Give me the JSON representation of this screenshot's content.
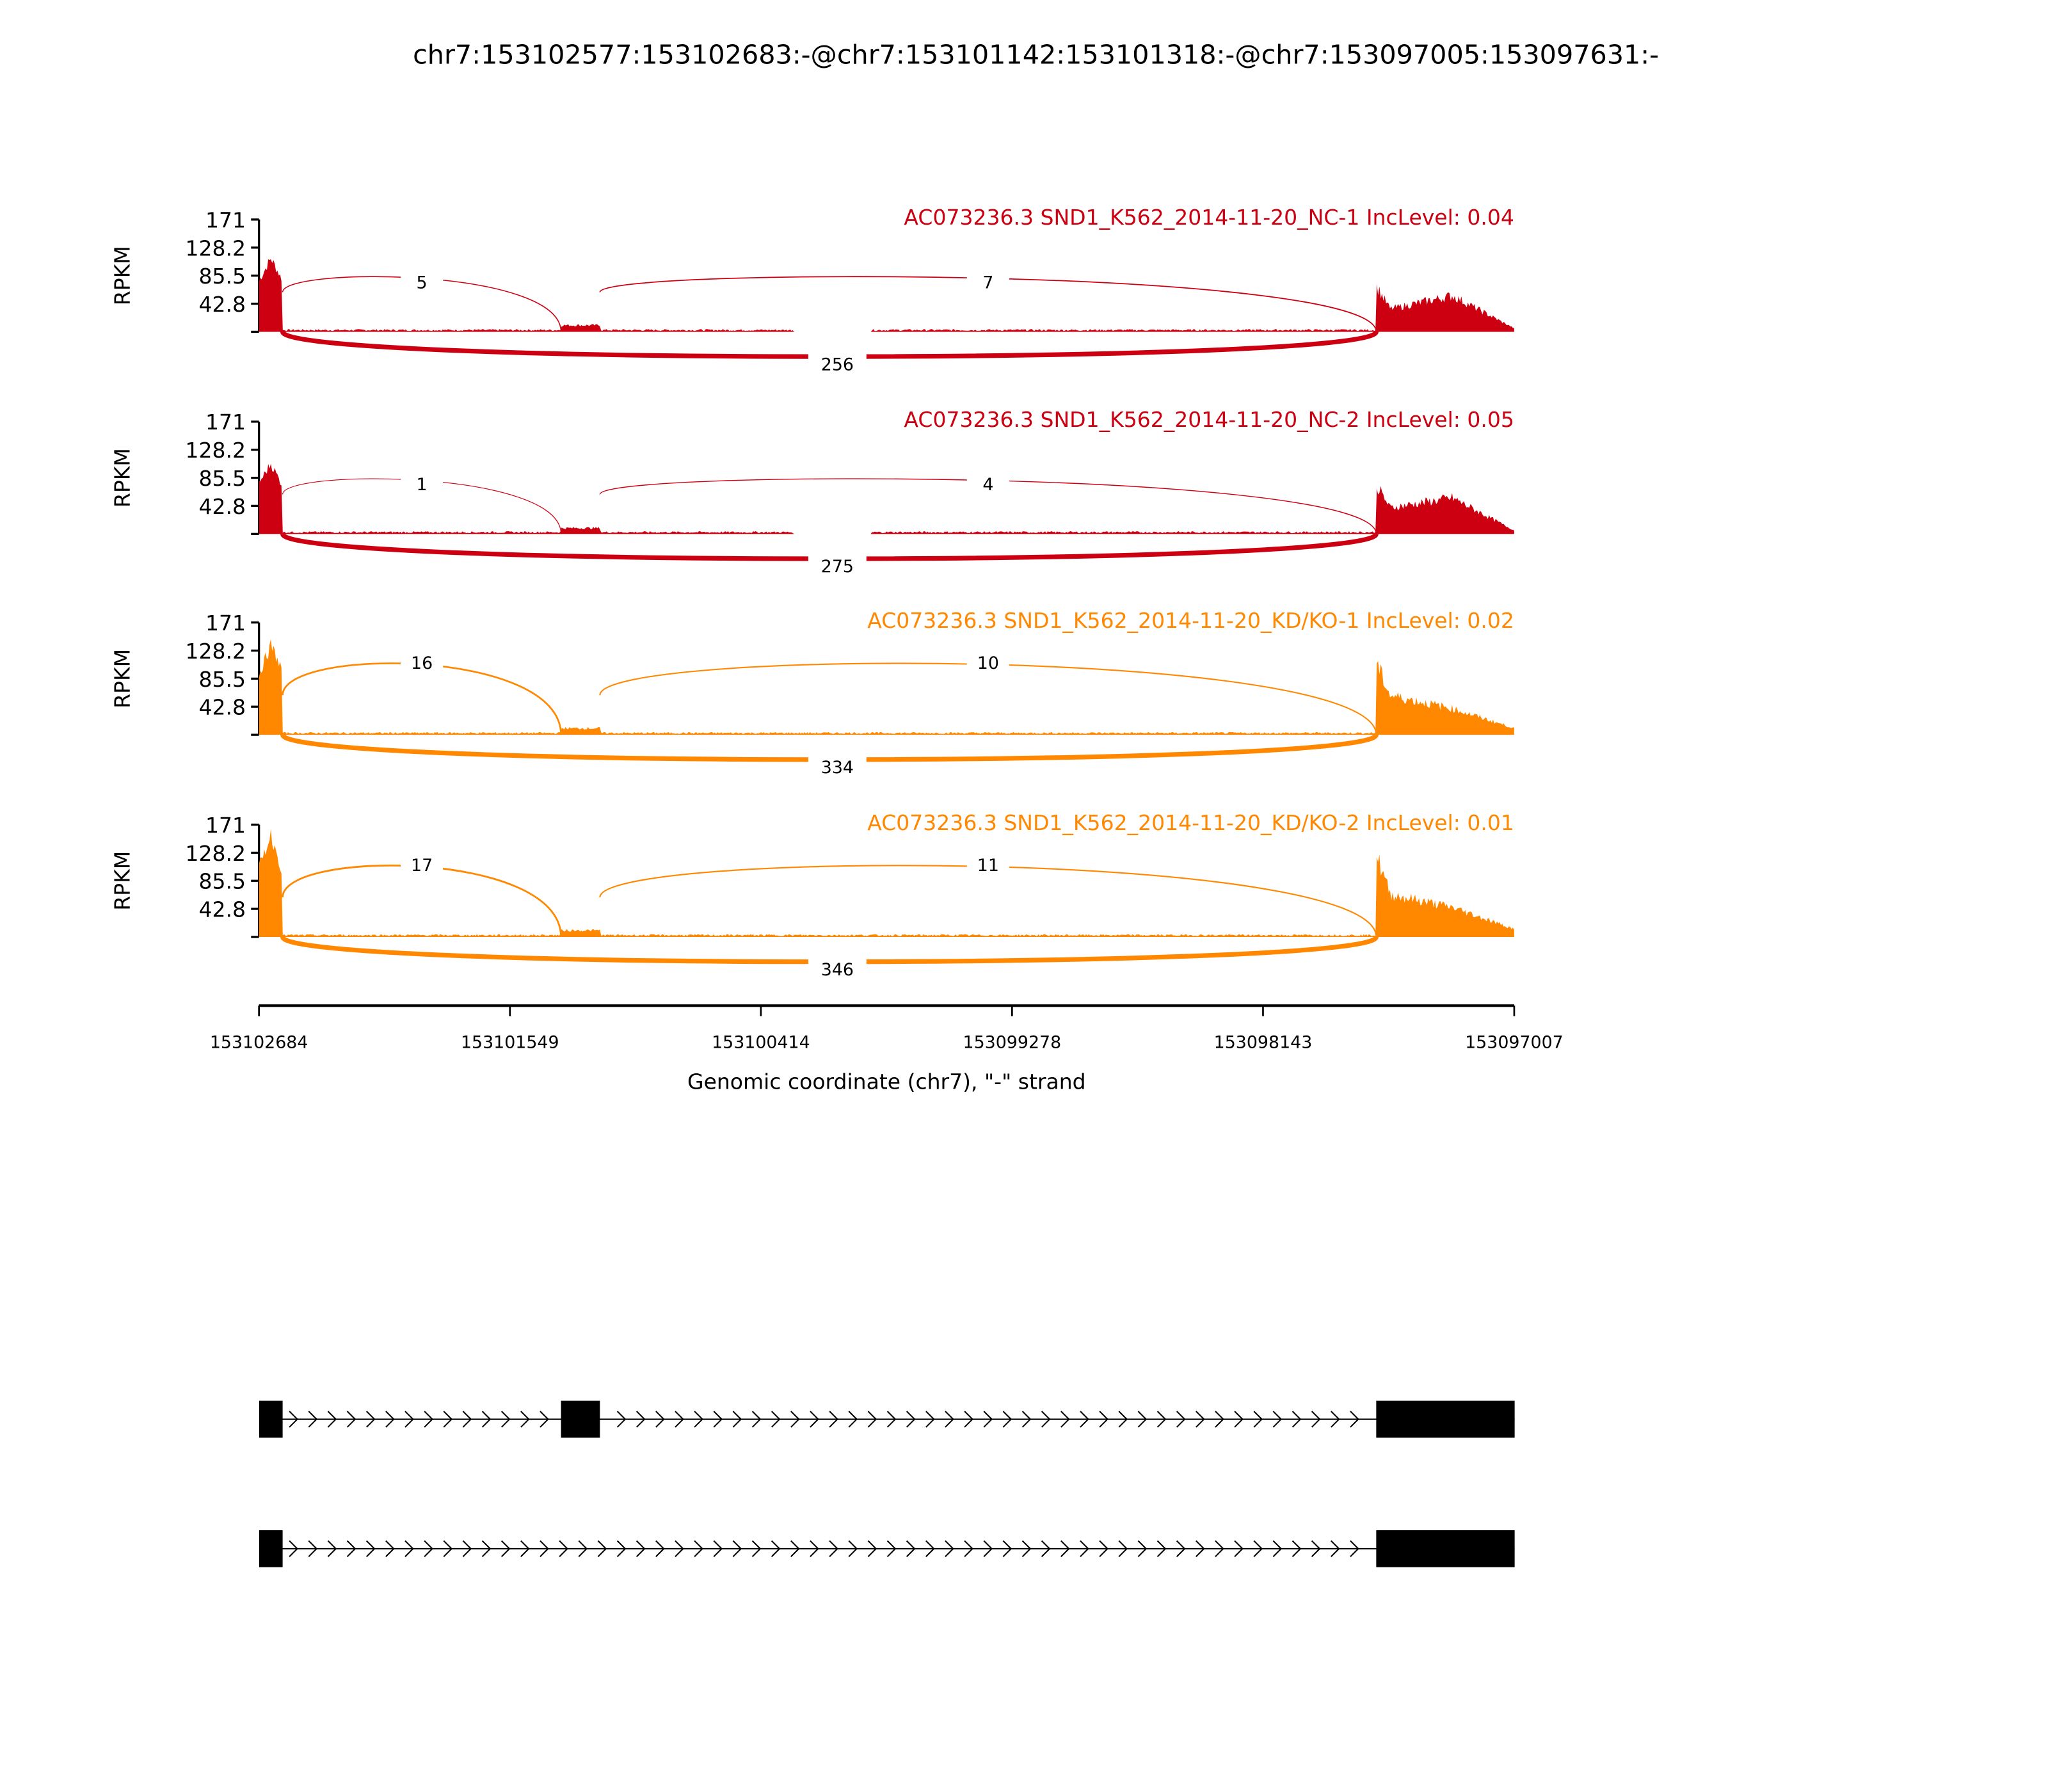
{
  "title": "chr7:153102577:153102683:-@chr7:153101142:153101318:-@chr7:153097005:153097631:-",
  "chart_data": {
    "type": "area",
    "title": "chr7:153102577:153102683:-@chr7:153101142:153101318:-@chr7:153097005:153097631:-",
    "ylabel": "RPKM",
    "xlabel": "Genomic coordinate (chr7), \"-\" strand",
    "ylim": [
      0,
      171
    ],
    "yticks": [
      "42.8",
      "85.5",
      "128.2",
      "171"
    ],
    "xlim": [
      153102684,
      153097007
    ],
    "xticks": [
      "153102684",
      "153101549",
      "153100414",
      "153099278",
      "153098143",
      "153097007"
    ],
    "exons": [
      {
        "start": 153102577,
        "end": 153102683
      },
      {
        "start": 153101142,
        "end": 153101318
      },
      {
        "start": 153097005,
        "end": 153097631
      }
    ],
    "samples": [
      {
        "name": "AC073236.3 SND1_K562_2014-11-20_NC-1 IncLevel: 0.04",
        "color": "#cc0011",
        "junctions": {
          "upstream": "5",
          "downstream": "7",
          "skipping": "256"
        },
        "coverage": {
          "exon1": [
            80,
            115,
            80
          ],
          "intron": 3,
          "exon2": 10,
          "exon3": [
            70,
            35,
            55,
            5
          ]
        }
      },
      {
        "name": "AC073236.3 SND1_K562_2014-11-20_NC-2 IncLevel: 0.05",
        "color": "#cc0011",
        "junctions": {
          "upstream": "1",
          "downstream": "4",
          "skipping": "275"
        },
        "coverage": {
          "exon1": [
            80,
            110,
            75
          ],
          "intron": 3,
          "exon2": 9,
          "exon3": [
            75,
            40,
            55,
            5
          ]
        }
      },
      {
        "name": "AC073236.3 SND1_K562_2014-11-20_KD/KO-1 IncLevel: 0.02",
        "color": "#ff8800",
        "junctions": {
          "upstream": "16",
          "downstream": "10",
          "skipping": "334"
        },
        "coverage": {
          "exon1": [
            95,
            140,
            100
          ],
          "intron": 3,
          "exon2": 10,
          "exon3": [
            110,
            60,
            40,
            10
          ]
        }
      },
      {
        "name": "AC073236.3 SND1_K562_2014-11-20_KD/KO-2 IncLevel: 0.01",
        "color": "#ff8800",
        "junctions": {
          "upstream": "17",
          "downstream": "11",
          "skipping": "346"
        },
        "coverage": {
          "exon1": [
            110,
            160,
            100
          ],
          "intron": 3,
          "exon2": 10,
          "exon3": [
            125,
            65,
            45,
            12
          ]
        }
      }
    ],
    "isoforms": [
      {
        "exons": [
          0,
          1,
          2
        ]
      },
      {
        "exons": [
          0,
          2
        ]
      }
    ]
  }
}
